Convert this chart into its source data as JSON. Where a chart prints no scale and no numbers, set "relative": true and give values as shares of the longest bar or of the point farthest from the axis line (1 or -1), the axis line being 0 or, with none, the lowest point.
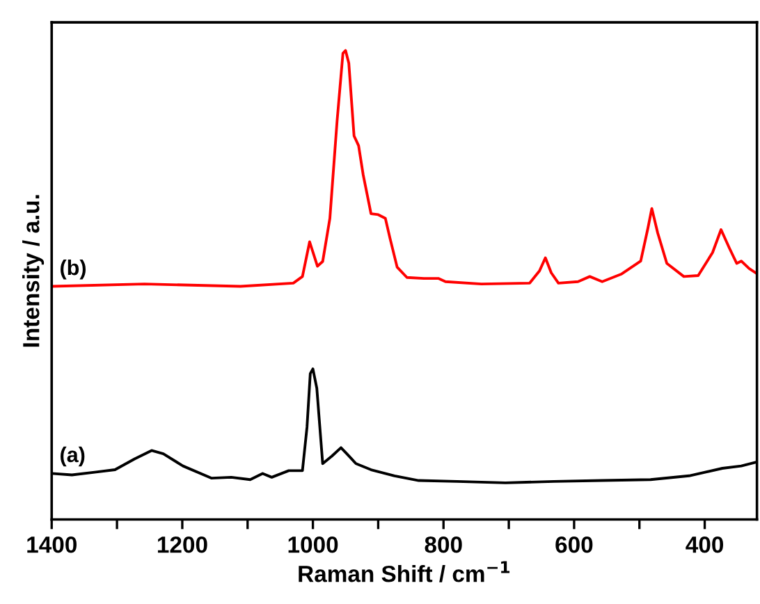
{
  "chart_data": {
    "type": "line",
    "xlabel": "Raman Shift / cm$^{−1}$",
    "ylabel": "Intensity / a.u.",
    "relative": true,
    "xlim": [
      1400,
      320
    ],
    "xticks": [
      1400,
      {
        "value": 1300,
        "label": null
      },
      1200,
      {
        "value": 1100,
        "label": null
      },
      1000,
      {
        "value": 900,
        "label": null
      },
      800,
      {
        "value": 700,
        "label": null
      },
      600,
      {
        "value": 500,
        "label": null
      },
      400
    ],
    "grid": false,
    "legend": false,
    "marker": "none",
    "line_style": "solid",
    "series": [
      {
        "name": "(a)",
        "color": "#000000",
        "x": [
          1400,
          1369,
          1332,
          1303,
          1273,
          1247,
          1229,
          1199,
          1155,
          1125,
          1096,
          1077,
          1063,
          1037,
          1016,
          1009,
          1004,
          1000,
          994,
          985,
          971,
          957,
          948,
          934,
          911,
          875,
          838,
          779,
          705,
          631,
          557,
          483,
          424,
          373,
          344,
          322
        ],
        "values": [
          0.098,
          0.095,
          0.101,
          0.106,
          0.129,
          0.147,
          0.14,
          0.114,
          0.088,
          0.09,
          0.085,
          0.098,
          0.09,
          0.104,
          0.104,
          0.197,
          0.311,
          0.321,
          0.28,
          0.119,
          0.135,
          0.153,
          0.14,
          0.119,
          0.106,
          0.093,
          0.083,
          0.081,
          0.078,
          0.081,
          0.083,
          0.085,
          0.093,
          0.109,
          0.114,
          0.122
        ]
      },
      {
        "name": "(b)",
        "color": "#ff0000",
        "x": [
          1400,
          1258,
          1111,
          1030,
          1016,
          1005,
          993,
          985,
          974,
          963,
          954,
          950,
          945,
          937,
          930,
          923,
          911,
          900,
          889,
          882,
          871,
          856,
          830,
          808,
          797,
          742,
          668,
          653,
          644,
          635,
          624,
          594,
          576,
          557,
          528,
          498,
          487,
          481,
          472,
          458,
          432,
          410,
          388,
          375,
          362,
          351,
          344,
          332,
          322
        ],
        "values": [
          0.497,
          0.502,
          0.497,
          0.504,
          0.518,
          0.592,
          0.54,
          0.55,
          0.642,
          0.849,
          0.994,
          1.0,
          0.973,
          0.818,
          0.797,
          0.735,
          0.652,
          0.65,
          0.642,
          0.6,
          0.538,
          0.516,
          0.514,
          0.514,
          0.507,
          0.502,
          0.504,
          0.53,
          0.558,
          0.526,
          0.504,
          0.507,
          0.518,
          0.507,
          0.523,
          0.551,
          0.621,
          0.663,
          0.611,
          0.546,
          0.518,
          0.52,
          0.569,
          0.618,
          0.578,
          0.546,
          0.551,
          0.535,
          0.526
        ]
      }
    ]
  }
}
